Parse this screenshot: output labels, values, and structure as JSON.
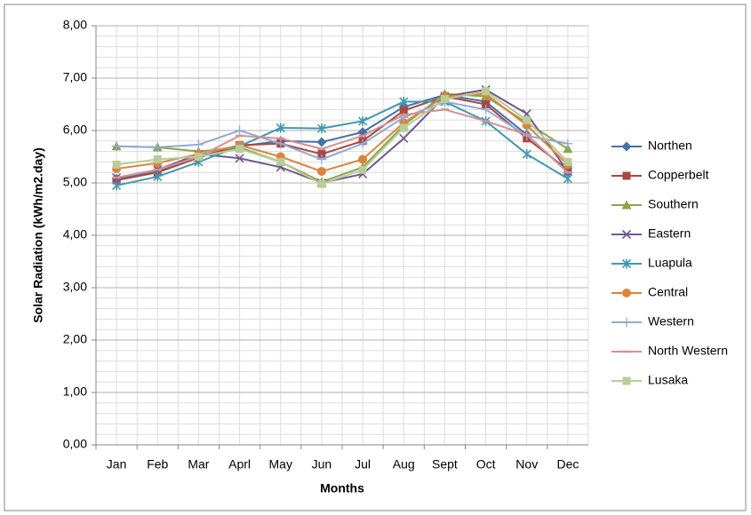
{
  "chart_data": {
    "type": "line",
    "xlabel": "Months",
    "ylabel": "Solar Radiation (kWh/m2.day)",
    "categories": [
      "Jan",
      "Feb",
      "Mar",
      "Aprl",
      "May",
      "Jun",
      "Jul",
      "Aug",
      "Sept",
      "Oct",
      "Nov",
      "Dec"
    ],
    "ylim": [
      0,
      8
    ],
    "yticks": [
      {
        "value": 0,
        "label": "0,00"
      },
      {
        "value": 1,
        "label": "1,00"
      },
      {
        "value": 2,
        "label": "2,00"
      },
      {
        "value": 3,
        "label": "3,00"
      },
      {
        "value": 4,
        "label": "4,00"
      },
      {
        "value": 5,
        "label": "5,00"
      },
      {
        "value": 6,
        "label": "6,00"
      },
      {
        "value": 7,
        "label": "7,00"
      },
      {
        "value": 8,
        "label": "8,00"
      }
    ],
    "grid": true,
    "legend": "right",
    "series": [
      {
        "name": "Northen",
        "color": "#4572A7",
        "marker": "diamond",
        "values": [
          5.08,
          5.22,
          5.5,
          5.7,
          5.8,
          5.78,
          5.97,
          6.45,
          6.68,
          6.55,
          5.92,
          5.2
        ]
      },
      {
        "name": "Copperbelt",
        "color": "#AA4643",
        "marker": "square",
        "values": [
          5.05,
          5.2,
          5.48,
          5.72,
          5.75,
          5.55,
          5.8,
          6.38,
          6.65,
          6.5,
          5.85,
          5.25
        ]
      },
      {
        "name": "Southern",
        "color": "#89A54E",
        "marker": "triangle",
        "values": [
          5.7,
          5.68,
          5.6,
          5.68,
          5.4,
          5.02,
          5.3,
          6.1,
          6.7,
          6.65,
          6.15,
          5.65
        ]
      },
      {
        "name": "Eastern",
        "color": "#71588F",
        "marker": "x",
        "values": [
          5.1,
          5.25,
          5.55,
          5.47,
          5.3,
          5.0,
          5.17,
          5.85,
          6.65,
          6.78,
          6.32,
          5.22
        ]
      },
      {
        "name": "Luapula",
        "color": "#4198AF",
        "marker": "star",
        "values": [
          4.95,
          5.12,
          5.4,
          5.7,
          6.05,
          6.04,
          6.18,
          6.55,
          6.55,
          6.18,
          5.55,
          5.08
        ]
      },
      {
        "name": "Central",
        "color": "#DB843D",
        "marker": "circle",
        "values": [
          5.27,
          5.38,
          5.55,
          5.72,
          5.5,
          5.22,
          5.45,
          6.15,
          6.65,
          6.7,
          6.1,
          5.35
        ]
      },
      {
        "name": "Western",
        "color": "#93A9CF",
        "marker": "plus",
        "values": [
          5.7,
          5.68,
          5.73,
          6.0,
          5.75,
          5.45,
          5.75,
          6.25,
          6.55,
          6.4,
          5.9,
          5.75
        ]
      },
      {
        "name": "North Western",
        "color": "#D19392",
        "marker": "dash",
        "values": [
          5.1,
          5.25,
          5.5,
          5.9,
          5.85,
          5.65,
          5.9,
          6.3,
          6.4,
          6.18,
          5.92,
          5.2
        ]
      },
      {
        "name": "Lusaka",
        "color": "#B9CD96",
        "marker": "square",
        "values": [
          5.35,
          5.45,
          5.5,
          5.65,
          5.4,
          4.98,
          5.25,
          6.05,
          6.6,
          6.75,
          6.2,
          5.4
        ]
      }
    ]
  }
}
